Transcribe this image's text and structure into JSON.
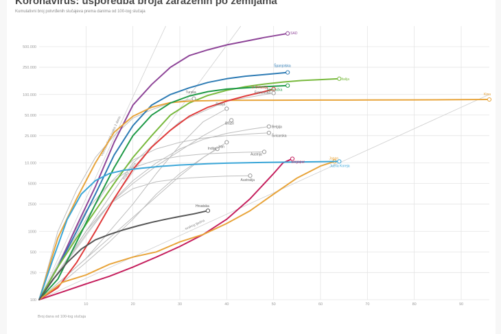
{
  "header": {
    "title": "Koronavirus: usporedba broja zaraženih po zemljama",
    "subtitle": "Kumulativni broj potvrđenih slučajeva prema danima od 100-tog slučaja"
  },
  "chart_data": {
    "type": "line",
    "title": "Koronavirus: usporedba broja zaraženih po zemljama",
    "subtitle": "Kumulativni broj potvrđenih slučajeva prema danima od 100-tog slučaja",
    "xlabel": "Broj dana od 100-tog slučaja",
    "x_ticks": [
      10,
      20,
      30,
      40,
      50,
      60,
      70,
      80,
      90
    ],
    "xlim": [
      0,
      96
    ],
    "y_scale": "log",
    "y_ticks": [
      {
        "value": 100,
        "label": "100"
      },
      {
        "value": 250,
        "label": "250"
      },
      {
        "value": 500,
        "label": "500"
      },
      {
        "value": 1000,
        "label": "1000"
      },
      {
        "value": 2500,
        "label": "2500"
      },
      {
        "value": 5000,
        "label": "5000"
      },
      {
        "value": 10000,
        "label": "10.000"
      },
      {
        "value": 25000,
        "label": "25.000"
      },
      {
        "value": 50000,
        "label": "50.000"
      },
      {
        "value": 100000,
        "label": "100.000"
      },
      {
        "value": 250000,
        "label": "250.000"
      },
      {
        "value": 500000,
        "label": "500.000"
      }
    ],
    "ylim": [
      100,
      1000000
    ],
    "grid": true,
    "reference_lines": [
      {
        "label": "Udvostručenje svaka 2 dana",
        "x": [
          0,
          27
        ],
        "y": [
          100,
          1000000
        ]
      },
      {
        "label": "... svaka 3 dana",
        "x": [
          0,
          43
        ],
        "y": [
          100,
          1000000
        ]
      },
      {
        "label": "... svakog tjedna",
        "x": [
          0,
          96
        ],
        "y": [
          100,
          100000
        ]
      }
    ],
    "series": [
      {
        "name": "SAD",
        "color": "#8e4598",
        "label_color": "#8e4598",
        "x": [
          0,
          4,
          8,
          12,
          16,
          20,
          24,
          28,
          32,
          36,
          40,
          44,
          48,
          53
        ],
        "y": [
          100,
          300,
          1200,
          4500,
          20000,
          70000,
          140000,
          250000,
          370000,
          450000,
          530000,
          600000,
          680000,
          780000
        ]
      },
      {
        "name": "Španjolska",
        "color": "#2d7bb4",
        "label_color": "#2d7bb4",
        "x": [
          0,
          4,
          8,
          12,
          16,
          20,
          24,
          28,
          32,
          36,
          40,
          44,
          48,
          53
        ],
        "y": [
          100,
          300,
          1000,
          3500,
          13000,
          35000,
          70000,
          100000,
          125000,
          150000,
          170000,
          185000,
          195000,
          210000
        ]
      },
      {
        "name": "Italija",
        "color": "#78b93d",
        "label_color": "#78b93d",
        "x": [
          0,
          4,
          8,
          12,
          16,
          20,
          24,
          28,
          32,
          36,
          40,
          44,
          48,
          52,
          56,
          60,
          64
        ],
        "y": [
          100,
          300,
          800,
          2000,
          5000,
          12000,
          25000,
          50000,
          75000,
          97000,
          115000,
          130000,
          142000,
          152000,
          160000,
          165000,
          170000
        ]
      },
      {
        "name": "Kina",
        "color": "#e8a43a",
        "label_color": "#e8a43a",
        "x": [
          0,
          4,
          8,
          12,
          16,
          20,
          24,
          28,
          32,
          40,
          50,
          60,
          70,
          80,
          90,
          96
        ],
        "y": [
          100,
          800,
          3000,
          10000,
          28000,
          48000,
          65000,
          76000,
          80000,
          82000,
          82500,
          82800,
          83000,
          83500,
          84000,
          84500
        ]
      },
      {
        "name": "Njemačka",
        "color": "#1f9a47",
        "label_color": "#1f9a47",
        "x": [
          0,
          4,
          8,
          12,
          16,
          20,
          24,
          28,
          32,
          36,
          40,
          44,
          48,
          53
        ],
        "y": [
          100,
          200,
          700,
          2500,
          8500,
          25000,
          50000,
          75000,
          95000,
          110000,
          120000,
          125000,
          130000,
          135000
        ]
      },
      {
        "name": "V. Britanija",
        "color": "#e03a3a",
        "label_color": "#e03a3a",
        "x": [
          0,
          4,
          8,
          12,
          16,
          20,
          24,
          28,
          32,
          36,
          40,
          44,
          48,
          50
        ],
        "y": [
          100,
          150,
          350,
          1000,
          3000,
          8000,
          17000,
          30000,
          48000,
          65000,
          80000,
          95000,
          110000,
          120000
        ]
      },
      {
        "name": "Turska",
        "color": "#bdbdbd",
        "label_color": "#666666",
        "x": [
          0,
          4,
          8,
          12,
          16,
          20,
          24,
          28,
          33
        ],
        "y": [
          100,
          1000,
          4000,
          12000,
          25000,
          45000,
          60000,
          75000,
          87000
        ]
      },
      {
        "name": "Francuska",
        "color": "#bdbdbd",
        "label_color": "#666666",
        "x": [
          0,
          10,
          20,
          30,
          40,
          50
        ],
        "y": [
          100,
          1000,
          10000,
          40000,
          80000,
          105000
        ]
      },
      {
        "name": "Rusija",
        "color": "#bdbdbd",
        "label_color": "#666666",
        "x": [
          0,
          5,
          10,
          15,
          20,
          25,
          30,
          35,
          40
        ],
        "y": [
          100,
          200,
          400,
          1000,
          2500,
          7000,
          18000,
          40000,
          62000
        ]
      },
      {
        "name": "Brazil",
        "color": "#bdbdbd",
        "label_color": "#666666",
        "x": [
          0,
          5,
          10,
          15,
          20,
          25,
          30,
          35,
          41
        ],
        "y": [
          100,
          300,
          1000,
          2500,
          5000,
          9000,
          15000,
          25000,
          42000
        ]
      },
      {
        "name": "Belgija",
        "color": "#bdbdbd",
        "label_color": "#666666",
        "x": [
          0,
          5,
          10,
          15,
          20,
          25,
          30,
          35,
          40,
          45,
          49
        ],
        "y": [
          100,
          300,
          1000,
          2500,
          5500,
          10000,
          16000,
          22000,
          27000,
          31000,
          34000
        ]
      },
      {
        "name": "Švicarska",
        "color": "#bdbdbd",
        "label_color": "#666666",
        "x": [
          0,
          5,
          10,
          15,
          20,
          25,
          30,
          35,
          40,
          45,
          49
        ],
        "y": [
          100,
          400,
          1500,
          5000,
          11000,
          16000,
          20000,
          23000,
          25000,
          26500,
          27500
        ]
      },
      {
        "name": "Indija",
        "color": "#bdbdbd",
        "label_color": "#666666",
        "x": [
          0,
          5,
          10,
          15,
          20,
          25,
          30,
          35,
          38
        ],
        "y": [
          100,
          180,
          350,
          700,
          1500,
          3500,
          7000,
          12000,
          16000
        ]
      },
      {
        "name": "Iran",
        "color": "#bdbdbd",
        "label_color": "#666666",
        "x": [
          0,
          5,
          10,
          15,
          20,
          25,
          30,
          35,
          40
        ],
        "y": [
          100,
          200,
          400,
          800,
          1600,
          3200,
          6400,
          12000,
          20000
        ]
      },
      {
        "name": "Austrija",
        "color": "#bdbdbd",
        "label_color": "#666666",
        "x": [
          0,
          5,
          10,
          15,
          20,
          25,
          30,
          35,
          40,
          44,
          48
        ],
        "y": [
          100,
          450,
          2000,
          5000,
          8500,
          11000,
          12500,
          13500,
          14000,
          14300,
          14500
        ]
      },
      {
        "name": "Singapur",
        "color": "#c51f5d",
        "label_color": "#c51f5d",
        "x": [
          0,
          5,
          10,
          15,
          20,
          25,
          30,
          35,
          40,
          45,
          50,
          52,
          54
        ],
        "y": [
          100,
          130,
          170,
          220,
          300,
          420,
          600,
          900,
          1500,
          3000,
          7000,
          10000,
          11500
        ]
      },
      {
        "name": "Japan",
        "color": "#e8a43a",
        "label_color": "#e8a43a",
        "x": [
          0,
          5,
          10,
          15,
          20,
          25,
          30,
          35,
          40,
          45,
          50,
          55,
          60,
          63
        ],
        "y": [
          100,
          180,
          230,
          330,
          420,
          500,
          700,
          900,
          1300,
          2000,
          3500,
          6000,
          9000,
          10500
        ]
      },
      {
        "name": "Južna Koreja",
        "color": "#3aa6d8",
        "label_color": "#3aa6d8",
        "x": [
          0,
          3,
          6,
          9,
          12,
          15,
          18,
          22,
          26,
          30,
          36,
          40,
          50,
          60,
          64
        ],
        "y": [
          100,
          400,
          1500,
          3500,
          5500,
          7000,
          7800,
          8400,
          8900,
          9300,
          9700,
          9900,
          10200,
          10400,
          10500
        ]
      },
      {
        "name": "Australija",
        "color": "#bdbdbd",
        "label_color": "#666666",
        "x": [
          0,
          5,
          10,
          15,
          20,
          25,
          30,
          35,
          40,
          45
        ],
        "y": [
          100,
          300,
          900,
          2500,
          4200,
          5300,
          5900,
          6200,
          6400,
          6500
        ]
      },
      {
        "name": "Hrvatska",
        "color": "#555555",
        "label_color": "#555555",
        "x": [
          0,
          3,
          6,
          9,
          12,
          15,
          18,
          21,
          24,
          27,
          30,
          33,
          36
        ],
        "y": [
          100,
          200,
          350,
          550,
          750,
          900,
          1050,
          1200,
          1350,
          1500,
          1650,
          1800,
          2000
        ]
      }
    ]
  }
}
